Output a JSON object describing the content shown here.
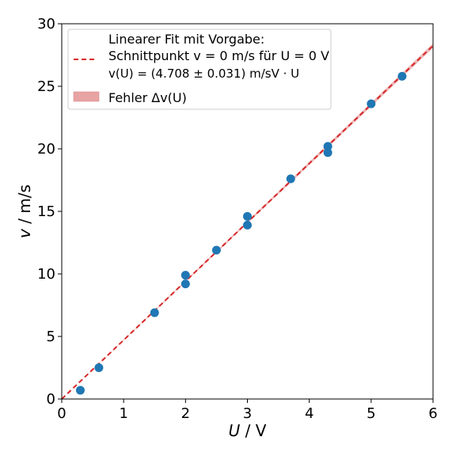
{
  "chart_data": {
    "type": "scatter",
    "xlabel_var": "U",
    "xlabel_unit": " / V",
    "ylabel_var": "v",
    "ylabel_unit": " / m/s",
    "xlim": [
      0,
      6
    ],
    "ylim": [
      0,
      30
    ],
    "xticks": [
      0,
      1,
      2,
      3,
      4,
      5,
      6
    ],
    "yticks": [
      0,
      5,
      10,
      15,
      20,
      25,
      30
    ],
    "grid": false,
    "legend_position": "top-left",
    "legend": {
      "fit_title": "Linearer Fit mit Vorgabe:",
      "fit_line2": "Schnittpunkt v = 0 m/s für U = 0 V",
      "fit_line3": "v(U) = (4.708 ± 0.031) m/sV · U",
      "band_label": "Fehler Δv(U)"
    },
    "fit": {
      "slope": 4.708,
      "slope_error": 0.031,
      "intercept": 0,
      "color": "#d62728",
      "band_color": "#e8a3a3"
    },
    "points": {
      "color": "#1f77b4",
      "x": [
        0.3,
        0.6,
        1.5,
        2.0,
        2.0,
        2.5,
        3.0,
        3.0,
        3.7,
        4.3,
        4.3,
        5.0,
        5.5
      ],
      "y": [
        0.7,
        2.5,
        6.9,
        9.9,
        9.2,
        11.9,
        14.6,
        13.9,
        17.6,
        20.2,
        19.7,
        23.6,
        25.8
      ]
    }
  }
}
